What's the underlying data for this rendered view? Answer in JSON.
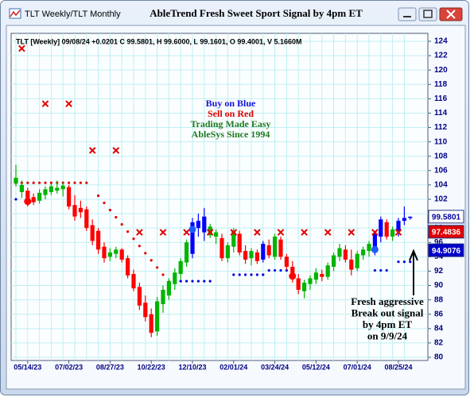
{
  "window_title": "TLT Weekly/TLT Monthly",
  "chart_data": {
    "type": "candlestick",
    "title": "AbleTrend Fresh Sweet Sport Signal by 4pm ET",
    "info": "TLT [Weekly] 09/08/24 +0.0201 C 99.5801, H 99.6000, L 99.1601, O 99.4001, V 5.1660M",
    "categories": [
      null,
      null,
      "05/14/23",
      null,
      null,
      null,
      null,
      null,
      null,
      "07/02/23",
      null,
      null,
      null,
      null,
      null,
      null,
      "08/27/23",
      null,
      null,
      null,
      null,
      null,
      null,
      "10/22/23",
      null,
      null,
      null,
      null,
      null,
      null,
      "12/10/23",
      null,
      null,
      null,
      null,
      null,
      null,
      "02/01/24",
      null,
      null,
      null,
      null,
      null,
      null,
      "03/24/24",
      null,
      null,
      null,
      null,
      null,
      null,
      "05/12/24",
      null,
      null,
      null,
      null,
      null,
      null,
      "07/01/24",
      null,
      null,
      null,
      null,
      null,
      null,
      "08/25/24",
      null,
      null
    ],
    "open": [
      105.0,
      103.0,
      103.2,
      102.3,
      101.8,
      102.6,
      103.0,
      103.6,
      103.4,
      103.7,
      101.2,
      100.2,
      100.6,
      98.4,
      97.6,
      95.4,
      94.0,
      94.4,
      95.0,
      93.8,
      91.6,
      89.8,
      87.6,
      86.0,
      83.6,
      87.4,
      88.6,
      90.2,
      91.6,
      93.2,
      94.4,
      98.0,
      97.4,
      98.2,
      96.8,
      96.6,
      93.8,
      95.4,
      97.2,
      94.8,
      93.8,
      94.6,
      93.6,
      95.6,
      94.0,
      96.4,
      94.0,
      92.6,
      91.0,
      89.2,
      90.2,
      90.8,
      91.6,
      91.2,
      92.6,
      94.0,
      95.0,
      93.6,
      92.4,
      94.2,
      94.8,
      95.2,
      96.8,
      98.8,
      96.8,
      97.6,
      99.0,
      99.4001
    ],
    "high": [
      106.8,
      104.6,
      103.6,
      102.8,
      103.4,
      103.8,
      104.2,
      104.6,
      104.3,
      104.0,
      102.6,
      101.8,
      101.0,
      99.2,
      98.0,
      96.0,
      95.2,
      95.4,
      95.2,
      94.2,
      92.2,
      90.4,
      88.6,
      86.8,
      88.4,
      90.0,
      91.0,
      92.4,
      93.8,
      96.4,
      99.4,
      100.0,
      100.8,
      98.6,
      97.8,
      97.2,
      96.0,
      98.0,
      97.6,
      95.6,
      95.2,
      95.0,
      96.2,
      96.4,
      97.2,
      96.8,
      94.4,
      93.4,
      91.6,
      90.8,
      91.4,
      92.4,
      92.2,
      93.2,
      94.6,
      95.8,
      95.6,
      95.0,
      94.8,
      95.4,
      96.2,
      97.6,
      99.6,
      99.2,
      98.2,
      99.4,
      101.0,
      99.6
    ],
    "low": [
      103.8,
      102.2,
      101.0,
      101.2,
      101.4,
      102.0,
      102.6,
      102.8,
      102.4,
      100.6,
      99.0,
      99.4,
      97.6,
      95.6,
      94.4,
      93.2,
      93.4,
      93.8,
      93.2,
      91.0,
      89.2,
      86.6,
      85.0,
      82.8,
      83.0,
      86.2,
      88.0,
      89.4,
      90.8,
      92.6,
      93.8,
      96.8,
      96.2,
      96.6,
      95.8,
      93.4,
      93.2,
      94.6,
      94.2,
      93.0,
      92.8,
      93.0,
      93.2,
      93.8,
      93.6,
      93.6,
      92.2,
      90.4,
      88.8,
      88.2,
      89.4,
      90.2,
      90.6,
      90.8,
      92.0,
      93.4,
      93.2,
      91.4,
      92.0,
      93.6,
      94.0,
      94.2,
      96.0,
      96.4,
      96.2,
      96.8,
      98.4,
      99.1601
    ],
    "close": [
      104.2,
      104.0,
      101.5,
      101.6,
      102.9,
      103.4,
      103.8,
      103.2,
      103.9,
      101.0,
      99.6,
      100.8,
      98.0,
      96.2,
      95.0,
      93.8,
      94.6,
      95.0,
      93.6,
      91.4,
      89.6,
      87.2,
      85.6,
      83.4,
      87.8,
      89.4,
      90.6,
      91.8,
      93.4,
      96.0,
      98.8,
      99.0,
      99.6,
      97.0,
      97.4,
      93.8,
      95.6,
      97.6,
      94.6,
      93.6,
      94.8,
      93.4,
      95.8,
      94.2,
      96.8,
      94.0,
      92.6,
      91.0,
      89.4,
      90.4,
      91.0,
      91.8,
      91.2,
      92.8,
      94.2,
      95.2,
      93.6,
      92.2,
      94.4,
      95.0,
      95.8,
      97.2,
      99.2,
      96.8,
      97.8,
      99.0,
      99.4,
      99.5801
    ],
    "colors": [
      "#00b400",
      "#00b400",
      "#ff0000",
      "#ff0000",
      "#00b400",
      "#00b400",
      "#00b400",
      "#00b400",
      "#00b400",
      "#ff0000",
      "#ff0000",
      "#ff0000",
      "#ff0000",
      "#ff0000",
      "#ff0000",
      "#ff0000",
      "#00b400",
      "#00b400",
      "#ff0000",
      "#ff0000",
      "#ff0000",
      "#ff0000",
      "#ff0000",
      "#ff0000",
      "#00b400",
      "#00b400",
      "#00b400",
      "#00b400",
      "#00b400",
      "#00b400",
      "#0000ff",
      "#0000ff",
      "#0000ff",
      "#00b400",
      "#00b400",
      "#ff0000",
      "#00b400",
      "#00b400",
      "#ff0000",
      "#ff0000",
      "#00b400",
      "#ff0000",
      "#0000ff",
      "#ff0000",
      "#00b400",
      "#ff0000",
      "#ff0000",
      "#ff0000",
      "#ff0000",
      "#00b400",
      "#00b400",
      "#00b400",
      "#ff0000",
      "#00b400",
      "#00b400",
      "#00b400",
      "#ff0000",
      "#ff0000",
      "#00b400",
      "#00b400",
      "#00b400",
      "#0000ff",
      "#0000ff",
      "#ff0000",
      "#00b400",
      "#0000ff",
      "#0000ff",
      "#0000ff"
    ],
    "sell_stops": {
      "color": "#e00000",
      "x": [
        1,
        5,
        9,
        13,
        17,
        21,
        25,
        29,
        33,
        37,
        41,
        45,
        49,
        53,
        57,
        61,
        65
      ],
      "values": [
        123,
        115.3,
        115.3,
        108.8,
        108.8,
        97.4,
        97.4,
        97.4,
        97.4,
        97.4,
        97.4,
        97.4,
        97.4,
        97.4,
        97.4,
        97.4,
        97.4
      ]
    },
    "red_dots": {
      "color": "#e00000",
      "x": [
        0,
        1,
        2,
        3,
        4,
        5,
        6,
        7,
        8,
        9,
        10,
        11,
        12,
        14,
        15,
        16,
        17,
        18,
        19,
        20,
        21,
        22,
        23,
        24,
        25,
        26
      ],
      "values": [
        104.3,
        104.3,
        104.3,
        104.3,
        104.3,
        104.3,
        104.3,
        104.3,
        104.3,
        104.3,
        104.3,
        104.3,
        104.3,
        102.5,
        101.5,
        100.5,
        99.5,
        98.5,
        97.5,
        96.5,
        95.5,
        94.5,
        93.5,
        92.5,
        91.5,
        90.5
      ]
    },
    "blue_dots": {
      "color": "#0000e0",
      "x": [
        0,
        27,
        28,
        29,
        30,
        31,
        32,
        33,
        37,
        38,
        39,
        40,
        41,
        42,
        43,
        44,
        45,
        46,
        61,
        62,
        63,
        65,
        66,
        67
      ],
      "values": [
        102,
        90.6,
        90.6,
        90.6,
        90.6,
        90.6,
        90.6,
        90.6,
        91.5,
        91.5,
        91.5,
        91.5,
        91.5,
        91.5,
        92.1,
        92.1,
        92.1,
        92.1,
        92.1,
        92.1,
        92.1,
        93.3,
        93.3,
        93.3
      ]
    },
    "signals": {
      "x": [
        2,
        30,
        47,
        61
      ],
      "values": [
        101.7,
        97.8,
        91.3,
        95.0
      ],
      "colors": [
        "#ff0000",
        "#1e5cff",
        "#ff0000",
        "#1e5cff"
      ]
    },
    "price_tags": [
      {
        "value": 99.5801,
        "color": "#0000a0",
        "background": "#ffffff"
      },
      {
        "value": 97.4836,
        "color": "#ffffff",
        "background": "#e00000"
      },
      {
        "value": 94.9076,
        "color": "#ffffff",
        "background": "#0000c8"
      }
    ],
    "legend_text": [
      {
        "text": "Buy on Blue",
        "color": "#1414d8"
      },
      {
        "text": "Sell on Red",
        "color": "#e00000"
      },
      {
        "text": "Trading Made Easy",
        "color": "#1f7a1f"
      },
      {
        "text": "AbleSys Since 1994",
        "color": "#1f7a1f"
      }
    ],
    "annotation": [
      "Fresh aggressive",
      "Break out signal",
      "by 4pm ET",
      "on 9/9/24"
    ],
    "ylim": [
      80,
      124
    ],
    "yticks": [
      80,
      82,
      84,
      86,
      88,
      90,
      92,
      94,
      96,
      98,
      100,
      102,
      104,
      106,
      108,
      110,
      112,
      114,
      116,
      118,
      120,
      122,
      124
    ],
    "grid": true
  }
}
